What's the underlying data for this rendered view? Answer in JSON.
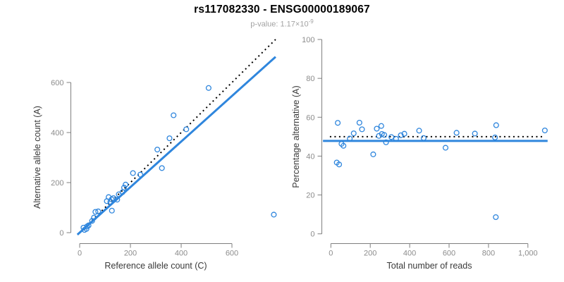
{
  "header": {
    "title": "rs117082330 - ENSG00000189067",
    "subtitle": {
      "text": "p-value: 1.17×10",
      "exponent": "-9"
    }
  },
  "colors": {
    "point": "#2f86dd",
    "fit_line": "#2f86dd",
    "reference_line": "#000000",
    "axis": "#7f7f7f",
    "tick_label": "#8c8c8c",
    "axis_label": "#3a3a3a",
    "title": "#000000",
    "subtitle": "#a3a3a3",
    "background": "#ffffff"
  },
  "chart_data": [
    {
      "panel": "left",
      "type": "scatter",
      "marker": "open-circle",
      "xlabel": "Reference allele count (C)",
      "ylabel": "Alternative allele count (A)",
      "xticks": [
        0,
        200,
        400,
        600
      ],
      "xtick_labels": [
        "0",
        "200",
        "400",
        "600"
      ],
      "yticks": [
        0,
        200,
        400,
        600
      ],
      "ytick_labels": [
        "0",
        "200",
        "400",
        "600"
      ],
      "xlim": [
        0,
        772
      ],
      "ylim": [
        0,
        775
      ],
      "grid": false,
      "legend": false,
      "points": {
        "x": [
          15,
          19,
          27,
          29,
          35,
          49,
          56,
          62,
          73,
          127,
          107,
          121,
          114,
          126,
          133,
          148,
          154,
          169,
          175,
          181,
          210,
          239,
          324,
          306,
          354,
          420,
          370,
          508,
          765
        ],
        "y": [
          20,
          11,
          15,
          25,
          29,
          47,
          60,
          83,
          85,
          88,
          126,
          123,
          142,
          133,
          138,
          132,
          153,
          162,
          180,
          192,
          238,
          232,
          258,
          332,
          377,
          413,
          469,
          578,
          72
        ]
      },
      "lines": [
        {
          "name": "identity-line",
          "style": "dotted",
          "color": "#000000",
          "slope": 1.0,
          "intercept": 0,
          "x_range": [
            -3,
            772
          ]
        },
        {
          "name": "fit-line",
          "style": "solid",
          "color": "#2f86dd",
          "slope": 0.91,
          "intercept": 0,
          "x_range": [
            -9,
            772
          ]
        }
      ]
    },
    {
      "panel": "right",
      "type": "scatter",
      "marker": "open-circle",
      "xlabel": "Total number of reads",
      "ylabel": "Percentage alternative (A)",
      "xticks": [
        0,
        200,
        400,
        600,
        800,
        1000
      ],
      "xtick_labels": [
        "0",
        "200",
        "400",
        "600",
        "800",
        "1,000"
      ],
      "yticks": [
        0,
        20,
        40,
        60,
        80,
        100
      ],
      "ytick_labels": [
        "0",
        "20",
        "40",
        "60",
        "80",
        "100"
      ],
      "xlim": [
        0,
        1100
      ],
      "ylim": [
        0,
        100
      ],
      "grid": false,
      "legend": false,
      "points": {
        "x": [
          35,
          30,
          42,
          54,
          64,
          96,
          116,
          145,
          158,
          215,
          233,
          244,
          256,
          259,
          271,
          280,
          307,
          331,
          355,
          373,
          448,
          471,
          582,
          638,
          731,
          833,
          839,
          1086,
          837
        ],
        "y": [
          57.1,
          36.7,
          35.7,
          46.3,
          45.3,
          49.0,
          51.7,
          57.2,
          53.8,
          40.9,
          54.1,
          50.4,
          55.5,
          51.4,
          50.9,
          47.1,
          49.8,
          48.9,
          50.7,
          51.5,
          53.1,
          49.3,
          44.3,
          52.0,
          51.6,
          49.6,
          55.9,
          53.2,
          8.6
        ]
      },
      "lines": [
        {
          "name": "expected-line",
          "style": "dotted",
          "color": "#000000",
          "y": 50,
          "x_range": [
            -5,
            1078
          ]
        },
        {
          "name": "fit-line",
          "style": "solid",
          "color": "#2f86dd",
          "y": 47.8,
          "x_range": [
            -40,
            1100
          ]
        }
      ]
    }
  ]
}
